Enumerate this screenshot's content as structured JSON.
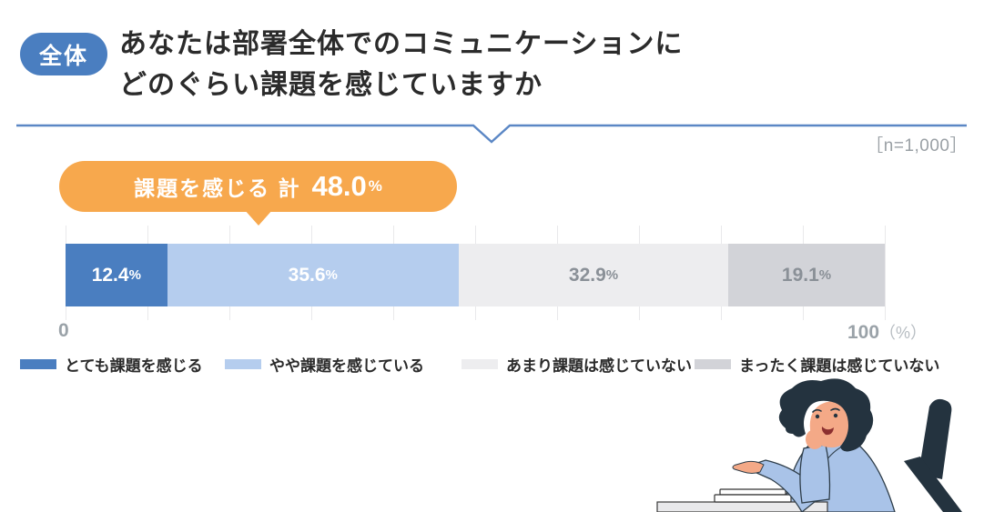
{
  "header": {
    "badge_label": "全体",
    "title_lines": [
      "あなたは部署全体でのコミュニケーションに",
      "どのぐらい課題を感じていますか"
    ],
    "sample_size": "［n=1,000］"
  },
  "callout": {
    "label": "課題を感じる 計",
    "value": "48.0",
    "unit": "％"
  },
  "chart_data": {
    "type": "bar",
    "subtype": "stacked-horizontal",
    "title": "あなたは部署全体でのコミュニケーションにどのぐらい課題を感じていますか",
    "group": "全体",
    "sample_size_n": 1000,
    "categories": [
      "全体"
    ],
    "series": [
      {
        "name": "とても課題を感じる",
        "value": 12.4,
        "color": "#4a7ec0",
        "label_color": "#ffffff"
      },
      {
        "name": "やや課題を感じている",
        "value": 35.6,
        "color": "#b5cdee",
        "label_color": "#ffffff"
      },
      {
        "name": "あまり課題は感じていない",
        "value": 32.9,
        "color": "#ededef",
        "label_color": "#8a9097"
      },
      {
        "name": "まったく課題は感じていない",
        "value": 19.1,
        "color": "#d2d3d8",
        "label_color": "#8a9097"
      }
    ],
    "annotation": {
      "label": "課題を感じる 計",
      "value": 48.0,
      "unit": "％"
    },
    "x_axis": {
      "min": 0,
      "max": 100,
      "min_label": "0",
      "max_label": "100",
      "max_unit": "（%）",
      "gridline_interval": 10
    },
    "legend_position": "bottom",
    "value_suffix": "%"
  },
  "colors": {
    "badge_blue": "#4a7ec0",
    "divider_blue": "#5b87c5",
    "callout_orange": "#f7a84d",
    "segment_1": "#4a7ec0",
    "segment_2": "#b5cdee",
    "segment_3": "#ededef",
    "segment_4": "#d2d3d8",
    "axis_gray": "#9aa2a8",
    "text_dark": "#2b2b2b"
  },
  "illustration": {
    "name": "thinking-woman-at-desk"
  }
}
